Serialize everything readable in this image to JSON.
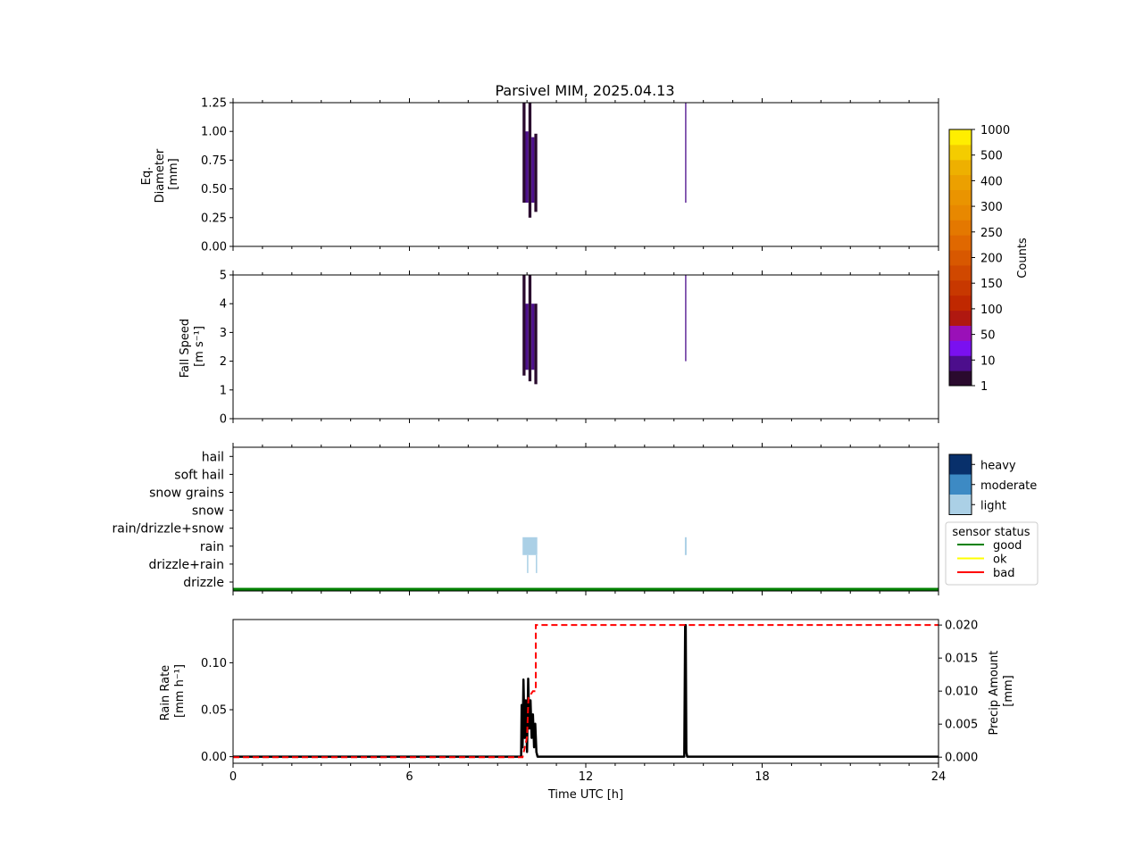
{
  "title": "Parsivel MIM, 2025.04.13",
  "colors": {
    "counts_scale": [
      "#2a0a2e",
      "#4c0e8c",
      "#7a10f0",
      "#9a10b8",
      "#b01810",
      "#c02800",
      "#c83800",
      "#d04800",
      "#d85800",
      "#e06800",
      "#e47800",
      "#e88800",
      "#ea9400",
      "#eca000",
      "#eeb000",
      "#f4cc00",
      "#ffee00"
    ],
    "heavy": "#08306b",
    "moderate": "#3d8ac4",
    "light": "#abd0e6",
    "good": "#008000",
    "ok": "#ffff00",
    "bad": "#ff0000",
    "precip_amount": "#ff0000",
    "rain_rate": "#000000"
  },
  "chart_data": [
    {
      "type": "heatmap",
      "ylabel": "Eq.\nDiameter\n[mm]",
      "xlim": [
        0,
        24
      ],
      "ylim": [
        0,
        1.25
      ],
      "yticks": [
        0.0,
        0.25,
        0.5,
        0.75,
        1.0,
        1.25
      ],
      "yticklabels": [
        "0.00",
        "0.25",
        "0.50",
        "0.75",
        "1.00",
        "1.25"
      ],
      "cells": [
        {
          "t0": 9.85,
          "t1": 9.95,
          "y0": 0.38,
          "y1": 1.25,
          "count": 1
        },
        {
          "t0": 9.95,
          "t1": 10.05,
          "y0": 0.38,
          "y1": 1.0,
          "count": 10
        },
        {
          "t0": 10.05,
          "t1": 10.15,
          "y0": 0.25,
          "y1": 1.25,
          "count": 1
        },
        {
          "t0": 10.15,
          "t1": 10.25,
          "y0": 0.38,
          "y1": 0.95,
          "count": 5
        },
        {
          "t0": 10.25,
          "t1": 10.35,
          "y0": 0.3,
          "y1": 0.98,
          "count": 1
        },
        {
          "t0": 15.38,
          "t1": 15.42,
          "y0": 0.38,
          "y1": 1.25,
          "count": 5
        }
      ]
    },
    {
      "type": "heatmap",
      "ylabel": "Fall Speed\n[m s⁻¹]",
      "xlim": [
        0,
        24
      ],
      "ylim": [
        0,
        5
      ],
      "yticks": [
        0,
        1,
        2,
        3,
        4,
        5
      ],
      "yticklabels": [
        "0",
        "1",
        "2",
        "3",
        "4",
        "5"
      ],
      "cells": [
        {
          "t0": 9.85,
          "t1": 9.95,
          "y0": 1.5,
          "y1": 5.0,
          "count": 1
        },
        {
          "t0": 9.95,
          "t1": 10.05,
          "y0": 1.7,
          "y1": 4.0,
          "count": 10
        },
        {
          "t0": 10.05,
          "t1": 10.15,
          "y0": 1.3,
          "y1": 5.0,
          "count": 1
        },
        {
          "t0": 10.15,
          "t1": 10.25,
          "y0": 1.7,
          "y1": 4.0,
          "count": 5
        },
        {
          "t0": 10.25,
          "t1": 10.35,
          "y0": 1.2,
          "y1": 4.0,
          "count": 1
        },
        {
          "t0": 15.38,
          "t1": 15.42,
          "y0": 2.0,
          "y1": 5.0,
          "count": 5
        }
      ]
    },
    {
      "type": "heatmap",
      "xlim": [
        0,
        24
      ],
      "categories": [
        "drizzle",
        "drizzle+rain",
        "rain",
        "rain/drizzle+snow",
        "snow",
        "snow grains",
        "soft hail",
        "hail"
      ],
      "intensity_levels": [
        "light",
        "moderate",
        "heavy"
      ],
      "cells": [
        {
          "t0": 9.85,
          "t1": 10.35,
          "category": "rain",
          "intensity": "light"
        },
        {
          "t0": 10.0,
          "t1": 10.04,
          "category": "drizzle+rain",
          "intensity": "light"
        },
        {
          "t0": 10.3,
          "t1": 10.34,
          "category": "drizzle+rain",
          "intensity": "light"
        },
        {
          "t0": 15.37,
          "t1": 15.43,
          "category": "rain",
          "intensity": "light"
        }
      ],
      "sensor_status": [
        {
          "t0": 0,
          "t1": 24,
          "status": "good"
        }
      ]
    },
    {
      "type": "line",
      "xlabel": "Time UTC [h]",
      "xlim": [
        0,
        24
      ],
      "xticks": [
        0,
        6,
        12,
        18,
        24
      ],
      "xticklabels": [
        "0",
        "6",
        "12",
        "18",
        "24"
      ],
      "ylabel_left": "Rain Rate\n[mm h⁻¹]",
      "ylim_left": [
        -0.007,
        0.146
      ],
      "yticks_left": [
        0.0,
        0.05,
        0.1
      ],
      "yticklabels_left": [
        "0.00",
        "0.05",
        "0.10"
      ],
      "ylabel_right": "Precip Amount\n[mm]",
      "ylim_right": [
        -0.00092,
        0.02083
      ],
      "yticks_right": [
        0.0,
        0.005,
        0.01,
        0.015,
        0.02
      ],
      "yticklabels_right": [
        "0.000",
        "0.005",
        "0.010",
        "0.015",
        "0.020"
      ],
      "series": [
        {
          "axis": "left",
          "style": "solid",
          "x": [
            0,
            9.8,
            9.82,
            9.85,
            9.88,
            9.92,
            9.96,
            10.0,
            10.04,
            10.08,
            10.12,
            10.16,
            10.2,
            10.24,
            10.28,
            10.32,
            10.36,
            10.4,
            15.35,
            15.38,
            15.4,
            15.42,
            15.45,
            24
          ],
          "y": [
            0,
            0,
            0.055,
            0.01,
            0.082,
            0.02,
            0.06,
            0.005,
            0.083,
            0.03,
            0.06,
            0.02,
            0.045,
            0.01,
            0.035,
            0.005,
            0.0,
            0,
            0,
            0.14,
            0.14,
            0.005,
            0,
            0
          ]
        },
        {
          "axis": "right",
          "style": "dashed",
          "x": [
            0,
            9.85,
            10.0,
            10.05,
            10.2,
            10.3,
            10.3,
            24
          ],
          "y": [
            0,
            0,
            0.003,
            0.009,
            0.01,
            0.01,
            0.02,
            0.02
          ]
        }
      ]
    }
  ],
  "colorbar": {
    "label": "Counts",
    "ticklabels": [
      "1",
      "10",
      "50",
      "100",
      "150",
      "200",
      "250",
      "300",
      "400",
      "500",
      "1000"
    ]
  },
  "intensity_legend": {
    "labels": [
      "heavy",
      "moderate",
      "light"
    ]
  },
  "status_legend": {
    "title": "sensor status",
    "labels": [
      "good",
      "ok",
      "bad"
    ]
  }
}
